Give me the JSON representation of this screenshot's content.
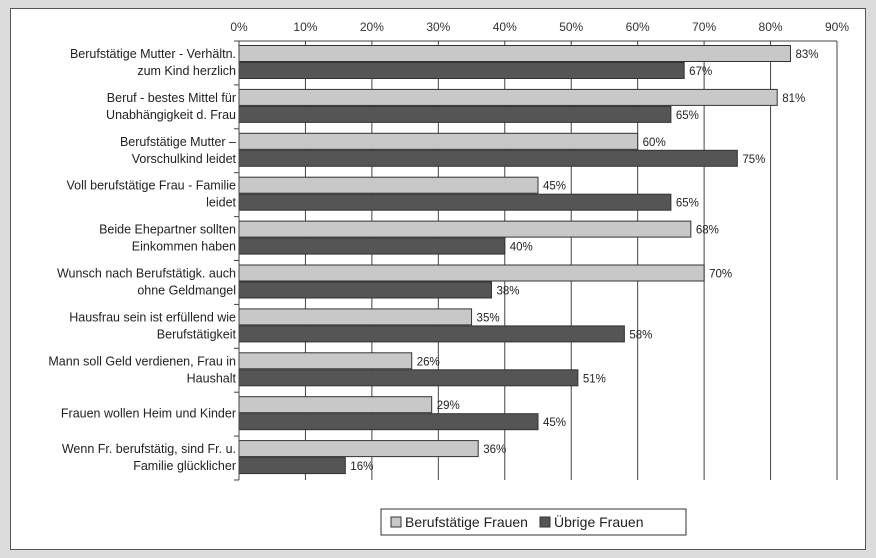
{
  "chart_data": {
    "type": "bar",
    "orientation": "horizontal",
    "title": "",
    "xlabel": "",
    "ylabel": "",
    "xlim": [
      0,
      90
    ],
    "x_ticks": [
      "0%",
      "10%",
      "20%",
      "30%",
      "40%",
      "50%",
      "60%",
      "70%",
      "80%",
      "90%"
    ],
    "grid": true,
    "legend_position": "bottom",
    "categories": [
      [
        "Berufstätige Mutter - Verhältn.",
        "zum Kind herzlich"
      ],
      [
        "Beruf - bestes Mittel für",
        "Unabhängigkeit d. Frau"
      ],
      [
        "Berufstätige Mutter –",
        "Vorschulkind leidet"
      ],
      [
        "Voll berufstätige Frau - Familie",
        "leidet"
      ],
      [
        "Beide Ehepartner sollten",
        "Einkommen haben"
      ],
      [
        "Wunsch nach Berufstätigk. auch",
        "ohne Geldmangel"
      ],
      [
        "Hausfrau sein ist erfüllend wie",
        "Berufstätigkeit"
      ],
      [
        "Mann soll Geld verdienen, Frau in",
        "Haushalt"
      ],
      [
        "Frauen wollen Heim und Kinder"
      ],
      [
        "Wenn Fr. berufstätig, sind Fr. u.",
        "Familie glücklicher"
      ]
    ],
    "series": [
      {
        "name": "Berufstätige Frauen",
        "color": "#c8c8c8",
        "values": [
          83,
          81,
          60,
          45,
          68,
          70,
          35,
          26,
          29,
          36
        ],
        "labels": [
          "83%",
          "81%",
          "60%",
          "45%",
          "68%",
          "70%",
          "35%",
          "26%",
          "29%",
          "36%"
        ]
      },
      {
        "name": "Übrige Frauen",
        "color": "#555555",
        "values": [
          67,
          65,
          75,
          65,
          40,
          38,
          58,
          51,
          45,
          16
        ],
        "labels": [
          "67%",
          "65%",
          "75%",
          "65%",
          "40%",
          "38%",
          "58%",
          "51%",
          "45%",
          "16%"
        ]
      }
    ]
  }
}
